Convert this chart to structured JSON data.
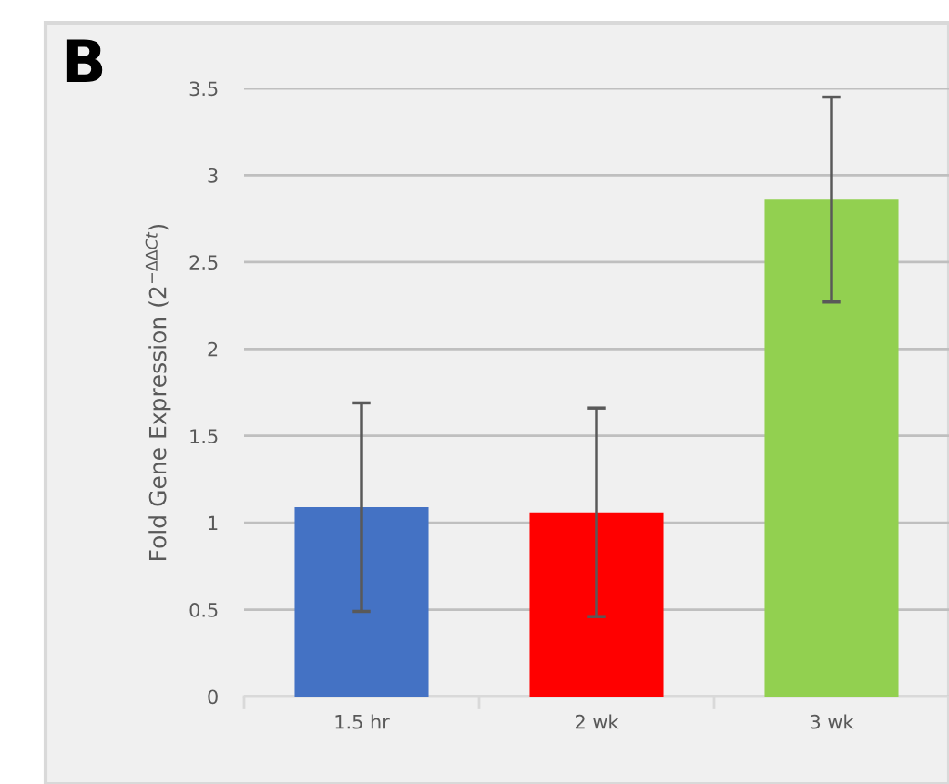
{
  "chart_data": {
    "type": "bar",
    "ylabel": "Fold Gene Expression (2$^{−ΔΔCt}$)",
    "categories": [
      "1.5 hr",
      "2 wk",
      "3 wk"
    ],
    "values": [
      1.09,
      1.06,
      2.86
    ],
    "errors": [
      0.6,
      0.6,
      0.59
    ],
    "colors": [
      "#4472c4",
      "#ff0000",
      "#92d050"
    ],
    "ylim": [
      0,
      3.5
    ],
    "yticks": [
      0,
      0.5,
      1,
      1.5,
      2,
      2.5,
      3,
      3.5
    ],
    "grid": "y",
    "legend": false,
    "annotations": [
      "B"
    ]
  }
}
